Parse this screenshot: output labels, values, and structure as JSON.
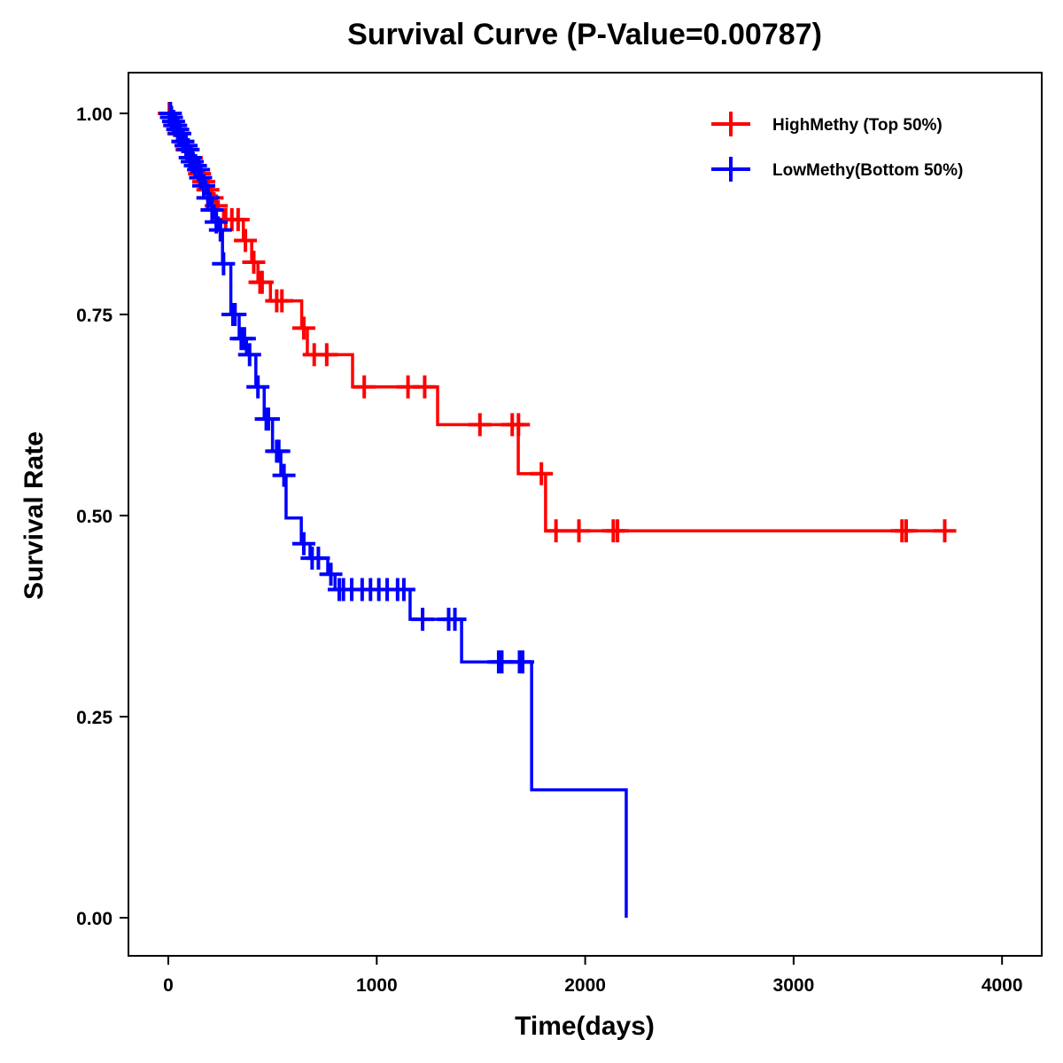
{
  "chart_data": {
    "type": "line",
    "subtype": "kaplan-meier step",
    "title": "Survival Curve (P-Value=0.00787)",
    "xlabel": "Time(days)",
    "ylabel": "Survival Rate",
    "xlim": [
      -200,
      4150
    ],
    "ylim": [
      -0.05,
      1.05
    ],
    "xticks": [
      0,
      1000,
      2000,
      3000,
      4000
    ],
    "xtick_labels": [
      "0",
      "1000",
      "2000",
      "3000",
      "4000"
    ],
    "yticks": [
      0,
      0.25,
      0.5,
      0.75,
      1.0
    ],
    "ytick_labels": [
      "0.00",
      "0.25",
      "0.50",
      "0.75",
      "1.00"
    ],
    "grid": false,
    "legend_position": "top-right",
    "series": [
      {
        "name": "HighMethy (Top 50%)",
        "color": "#ff0000",
        "steps": [
          [
            0,
            1.0
          ],
          [
            20,
            0.99
          ],
          [
            40,
            0.98
          ],
          [
            60,
            0.97
          ],
          [
            80,
            0.96
          ],
          [
            100,
            0.95
          ],
          [
            120,
            0.94
          ],
          [
            140,
            0.93
          ],
          [
            160,
            0.92
          ],
          [
            180,
            0.91
          ],
          [
            200,
            0.9
          ],
          [
            220,
            0.89
          ],
          [
            240,
            0.88
          ],
          [
            265,
            0.868
          ],
          [
            360,
            0.842
          ],
          [
            400,
            0.815
          ],
          [
            430,
            0.79
          ],
          [
            490,
            0.767
          ],
          [
            640,
            0.733
          ],
          [
            667,
            0.7
          ],
          [
            884,
            0.66
          ],
          [
            1292,
            0.613
          ],
          [
            1679,
            0.552
          ],
          [
            1810,
            0.481
          ],
          [
            3761,
            0.481
          ]
        ],
        "censored": [
          [
            5,
            1.0
          ],
          [
            30,
            0.985
          ],
          [
            50,
            0.975
          ],
          [
            70,
            0.965
          ],
          [
            90,
            0.955
          ],
          [
            110,
            0.945
          ],
          [
            130,
            0.935
          ],
          [
            150,
            0.925
          ],
          [
            170,
            0.915
          ],
          [
            190,
            0.905
          ],
          [
            210,
            0.895
          ],
          [
            230,
            0.885
          ],
          [
            275,
            0.868
          ],
          [
            305,
            0.868
          ],
          [
            335,
            0.868
          ],
          [
            370,
            0.842
          ],
          [
            410,
            0.815
          ],
          [
            440,
            0.79
          ],
          [
            450,
            0.79
          ],
          [
            520,
            0.767
          ],
          [
            545,
            0.767
          ],
          [
            650,
            0.733
          ],
          [
            700,
            0.7
          ],
          [
            760,
            0.7
          ],
          [
            940,
            0.66
          ],
          [
            1150,
            0.66
          ],
          [
            1230,
            0.66
          ],
          [
            1495,
            0.613
          ],
          [
            1650,
            0.613
          ],
          [
            1680,
            0.613
          ],
          [
            1790,
            0.552
          ],
          [
            1860,
            0.481
          ],
          [
            1970,
            0.481
          ],
          [
            2135,
            0.481
          ],
          [
            2155,
            0.481
          ],
          [
            3520,
            0.481
          ],
          [
            3540,
            0.481
          ],
          [
            3725,
            0.481
          ]
        ]
      },
      {
        "name": "LowMethy(Bottom 50%)",
        "color": "#0000ff",
        "steps": [
          [
            0,
            1.0
          ],
          [
            20,
            0.99
          ],
          [
            40,
            0.98
          ],
          [
            60,
            0.97
          ],
          [
            80,
            0.96
          ],
          [
            100,
            0.95
          ],
          [
            120,
            0.94
          ],
          [
            140,
            0.93
          ],
          [
            160,
            0.915
          ],
          [
            180,
            0.9
          ],
          [
            200,
            0.885
          ],
          [
            220,
            0.87
          ],
          [
            240,
            0.855
          ],
          [
            260,
            0.813
          ],
          [
            300,
            0.75
          ],
          [
            340,
            0.72
          ],
          [
            375,
            0.7
          ],
          [
            420,
            0.66
          ],
          [
            460,
            0.62
          ],
          [
            500,
            0.58
          ],
          [
            540,
            0.55
          ],
          [
            565,
            0.497
          ],
          [
            638,
            0.465
          ],
          [
            680,
            0.447
          ],
          [
            765,
            0.427
          ],
          [
            800,
            0.408
          ],
          [
            1160,
            0.371
          ],
          [
            1407,
            0.318
          ],
          [
            1743,
            0.159
          ],
          [
            2197,
            0.0
          ]
        ],
        "censored": [
          [
            10,
            1.0
          ],
          [
            15,
            0.995
          ],
          [
            25,
            0.99
          ],
          [
            35,
            0.985
          ],
          [
            45,
            0.98
          ],
          [
            55,
            0.975
          ],
          [
            70,
            0.965
          ],
          [
            85,
            0.96
          ],
          [
            95,
            0.955
          ],
          [
            105,
            0.945
          ],
          [
            115,
            0.94
          ],
          [
            130,
            0.935
          ],
          [
            145,
            0.93
          ],
          [
            155,
            0.92
          ],
          [
            170,
            0.91
          ],
          [
            190,
            0.895
          ],
          [
            210,
            0.88
          ],
          [
            230,
            0.865
          ],
          [
            250,
            0.855
          ],
          [
            265,
            0.813
          ],
          [
            310,
            0.75
          ],
          [
            320,
            0.75
          ],
          [
            350,
            0.72
          ],
          [
            365,
            0.72
          ],
          [
            390,
            0.7
          ],
          [
            430,
            0.66
          ],
          [
            470,
            0.62
          ],
          [
            480,
            0.62
          ],
          [
            520,
            0.58
          ],
          [
            530,
            0.58
          ],
          [
            555,
            0.55
          ],
          [
            650,
            0.465
          ],
          [
            690,
            0.447
          ],
          [
            720,
            0.447
          ],
          [
            780,
            0.427
          ],
          [
            820,
            0.408
          ],
          [
            840,
            0.408
          ],
          [
            880,
            0.408
          ],
          [
            930,
            0.408
          ],
          [
            970,
            0.408
          ],
          [
            1010,
            0.408
          ],
          [
            1050,
            0.408
          ],
          [
            1100,
            0.408
          ],
          [
            1130,
            0.408
          ],
          [
            1220,
            0.371
          ],
          [
            1345,
            0.371
          ],
          [
            1375,
            0.371
          ],
          [
            1585,
            0.318
          ],
          [
            1600,
            0.318
          ],
          [
            1685,
            0.318
          ],
          [
            1700,
            0.318
          ]
        ]
      }
    ]
  }
}
